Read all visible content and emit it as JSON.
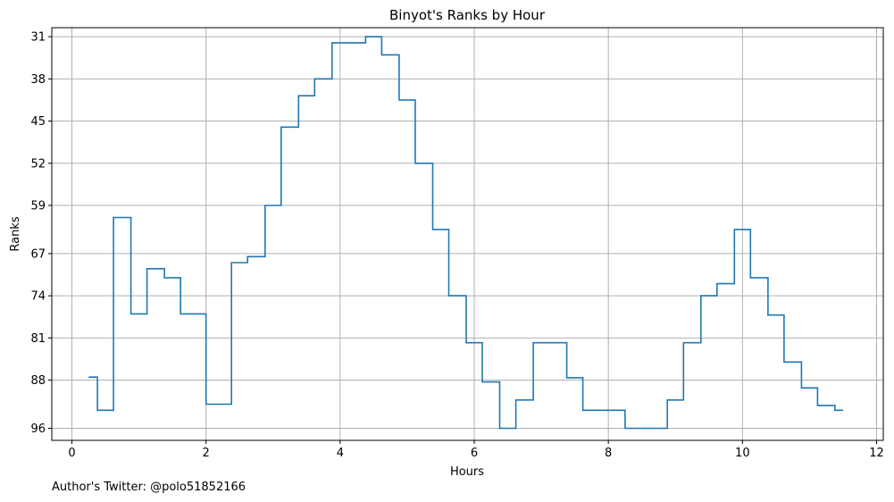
{
  "chart_data": {
    "type": "line",
    "drawstyle": "steps-post",
    "title": "Binyot's Ranks by Hour",
    "xlabel": "Hours",
    "ylabel": "Ranks",
    "xlim": [
      -0.3,
      12.1
    ],
    "ylim": [
      98,
      29.5
    ],
    "y_inverted": true,
    "xticks": [
      0,
      2,
      4,
      6,
      8,
      10,
      12
    ],
    "yticks": [
      31,
      38,
      45,
      52,
      59,
      67,
      74,
      81,
      88,
      96
    ],
    "grid": true,
    "series": [
      {
        "name": "Ranks",
        "color": "#1f77b4",
        "x": [
          0.25,
          0.38,
          0.62,
          0.88,
          1.12,
          1.38,
          1.62,
          2.0,
          2.38,
          2.62,
          2.88,
          3.12,
          3.38,
          3.62,
          3.88,
          4.38,
          4.62,
          4.88,
          5.12,
          5.38,
          5.62,
          5.88,
          6.12,
          6.38,
          6.62,
          6.88,
          7.38,
          7.62,
          8.25,
          8.88,
          9.12,
          9.38,
          9.62,
          9.88,
          10.12,
          10.38,
          10.62,
          10.88,
          11.12,
          11.38,
          11.5
        ],
        "y": [
          87.5,
          93.0,
          61.0,
          77.0,
          69.5,
          71.0,
          77.0,
          92.0,
          68.5,
          67.5,
          59.0,
          46.0,
          40.8,
          38.0,
          32.0,
          31.0,
          34.0,
          41.5,
          52.0,
          63.0,
          74.0,
          81.8,
          88.3,
          96.0,
          91.3,
          81.8,
          87.6,
          93.0,
          96.0,
          91.3,
          81.8,
          74.0,
          72.0,
          63.0,
          71.0,
          77.2,
          85.0,
          89.3,
          92.2,
          93.0,
          93.0
        ]
      }
    ]
  },
  "footer": {
    "text": "Author's Twitter: @polo51852166"
  }
}
